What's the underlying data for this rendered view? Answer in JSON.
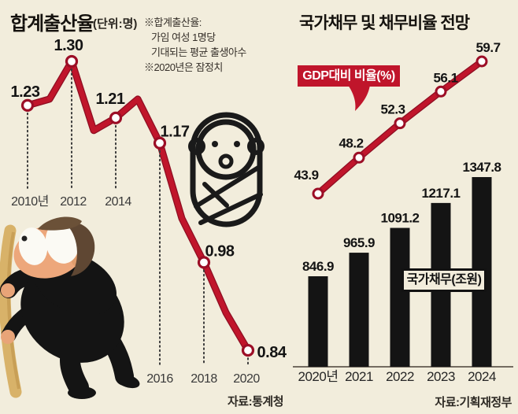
{
  "colors": {
    "background": "#f2eddc",
    "accent_red": "#c0152b",
    "bar_black": "#141414"
  },
  "left": {
    "title": "합계출산율",
    "unit": "(단위:명)",
    "notes": [
      "※합계출산율:",
      "가임 여성 1명당",
      "기대되는 평균 출생아수",
      "※2020년은 잠정치"
    ],
    "source": "자료:통계청"
  },
  "right": {
    "title": "국가채무 및 채무비율 전망",
    "line_legend": "GDP대비 비율(%)",
    "bar_legend": "국가채무(조원)",
    "source": "자료:기획재정부"
  },
  "chart_data": [
    {
      "type": "line",
      "title": "합계출산율",
      "ylabel": "명",
      "x": [
        2010,
        2011,
        2012,
        2013,
        2014,
        2015,
        2016,
        2017,
        2018,
        2019,
        2020
      ],
      "values": [
        1.23,
        1.24,
        1.3,
        1.19,
        1.21,
        1.24,
        1.17,
        1.05,
        0.98,
        0.9,
        0.84
      ],
      "intermediate_values_estimated": true,
      "labeled_points": [
        {
          "x": 2010,
          "label": "1.23"
        },
        {
          "x": 2012,
          "label": "1.30"
        },
        {
          "x": 2014,
          "label": "1.21"
        },
        {
          "x": 2016,
          "label": "1.17"
        },
        {
          "x": 2018,
          "label": "0.98"
        },
        {
          "x": 2020,
          "label": "0.84"
        }
      ],
      "x_tick_labels": [
        "2010년",
        "2012",
        "2014",
        "2016",
        "2018",
        "2020"
      ],
      "grid": "dotted-vertical-droplines",
      "source": "자료:통계청"
    },
    {
      "type": "combo",
      "title": "국가채무 및 채무비율 전망",
      "categories": [
        "2020년",
        "2021",
        "2022",
        "2023",
        "2024"
      ],
      "series": [
        {
          "name": "국가채무(조원)",
          "type": "bar",
          "values": [
            846.9,
            965.9,
            1091.2,
            1217.1,
            1347.8
          ]
        },
        {
          "name": "GDP대비 비율(%)",
          "type": "line",
          "values": [
            43.9,
            48.2,
            52.3,
            56.1,
            59.7
          ]
        }
      ],
      "legend_position": "overlay",
      "source": "자료:기획재정부"
    }
  ]
}
